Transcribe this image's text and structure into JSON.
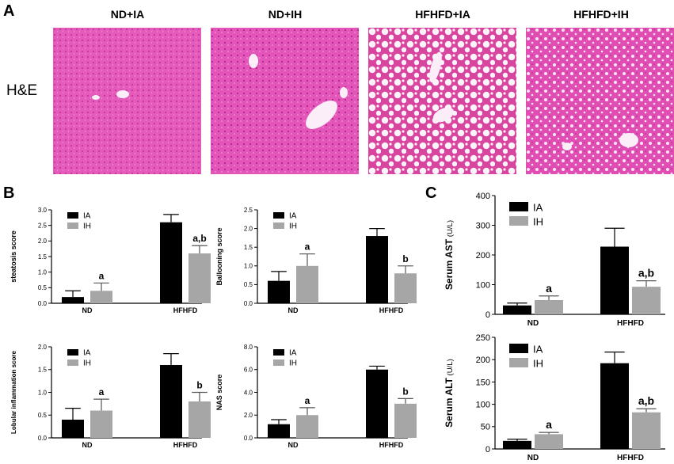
{
  "figure": {
    "panel_a_letter": "A",
    "panel_b_letter": "B",
    "panel_c_letter": "C",
    "stain_label": "H&E",
    "histology_titles": [
      "ND+IA",
      "ND+IH",
      "HFHFD+IA",
      "HFHFD+IH"
    ]
  },
  "colors": {
    "he_background": "#e24fb6",
    "IA_bar": "#000000",
    "IH_bar": "#a6a6a6"
  },
  "chart_data": [
    {
      "id": "steatosis",
      "type": "bar",
      "title": "",
      "xlabel": "",
      "ylabel": "steatosis score",
      "categories": [
        "ND",
        "HFHFD"
      ],
      "legend": [
        "IA",
        "IH"
      ],
      "legend_position": "top-left",
      "ylim": [
        0,
        3.0
      ],
      "yticks": [
        "0.0",
        "0.5",
        "1.0",
        "1.5",
        "2.0",
        "2.5",
        "3.0"
      ],
      "series": [
        {
          "name": "IA",
          "values": [
            0.2,
            2.6
          ],
          "errors": [
            0.2,
            0.25
          ]
        },
        {
          "name": "IH",
          "values": [
            0.4,
            1.6
          ],
          "errors": [
            0.25,
            0.25
          ]
        }
      ],
      "annotations": [
        "",
        "a",
        "",
        "a,b"
      ]
    },
    {
      "id": "ballooning",
      "type": "bar",
      "title": "",
      "xlabel": "",
      "ylabel": "Ballooning score",
      "categories": [
        "ND",
        "HFHFD"
      ],
      "legend": [
        "IA",
        "IH"
      ],
      "legend_position": "top-left",
      "ylim": [
        0,
        2.5
      ],
      "yticks": [
        "0.0",
        "0.5",
        "1.0",
        "1.5",
        "2.0",
        "2.5"
      ],
      "series": [
        {
          "name": "IA",
          "values": [
            0.6,
            1.8
          ],
          "errors": [
            0.25,
            0.2
          ]
        },
        {
          "name": "IH",
          "values": [
            1.0,
            0.8
          ],
          "errors": [
            0.32,
            0.2
          ]
        }
      ],
      "annotations": [
        "",
        "a",
        "",
        "b"
      ]
    },
    {
      "id": "lobular",
      "type": "bar",
      "title": "",
      "xlabel": "",
      "ylabel": "Lobular inflammation score",
      "categories": [
        "ND",
        "HFHFD"
      ],
      "legend": [
        "IA",
        "IH"
      ],
      "legend_position": "top-left",
      "ylim": [
        0,
        2.0
      ],
      "yticks": [
        "0.0",
        "0.5",
        "1.0",
        "1.5",
        "2.0"
      ],
      "series": [
        {
          "name": "IA",
          "values": [
            0.4,
            1.6
          ],
          "errors": [
            0.25,
            0.25
          ]
        },
        {
          "name": "IH",
          "values": [
            0.6,
            0.8
          ],
          "errors": [
            0.25,
            0.2
          ]
        }
      ],
      "annotations": [
        "",
        "a",
        "",
        "b"
      ]
    },
    {
      "id": "nas",
      "type": "bar",
      "title": "",
      "xlabel": "",
      "ylabel": "NAS score",
      "categories": [
        "ND",
        "HFHFD"
      ],
      "legend": [
        "IA",
        "IH"
      ],
      "legend_position": "top-left",
      "ylim": [
        0,
        8.0
      ],
      "yticks": [
        "0.0",
        "2.0",
        "4.0",
        "6.0",
        "8.0"
      ],
      "series": [
        {
          "name": "IA",
          "values": [
            1.2,
            6.0
          ],
          "errors": [
            0.4,
            0.3
          ]
        },
        {
          "name": "IH",
          "values": [
            2.0,
            3.0
          ],
          "errors": [
            0.65,
            0.45
          ]
        }
      ],
      "annotations": [
        "",
        "a",
        "",
        "b"
      ]
    },
    {
      "id": "ast",
      "type": "bar",
      "title": "",
      "xlabel": "",
      "ylabel": "Serum AST",
      "yunit": "(U/L)",
      "categories": [
        "ND",
        "HFHFD"
      ],
      "legend": [
        "IA",
        "IH"
      ],
      "legend_position": "top-left",
      "ylim": [
        0,
        400
      ],
      "yticks": [
        "0",
        "100",
        "200",
        "300",
        "400"
      ],
      "series": [
        {
          "name": "IA",
          "values": [
            30,
            228
          ],
          "errors": [
            8,
            62
          ]
        },
        {
          "name": "IH",
          "values": [
            48,
            93
          ],
          "errors": [
            14,
            20
          ]
        }
      ],
      "annotations": [
        "",
        "a",
        "",
        "a,b"
      ]
    },
    {
      "id": "alt",
      "type": "bar",
      "title": "",
      "xlabel": "",
      "ylabel": "Serum ALT",
      "yunit": "(U/L)",
      "categories": [
        "ND",
        "HFHFD"
      ],
      "legend": [
        "IA",
        "IH"
      ],
      "legend_position": "top-left",
      "ylim": [
        0,
        250
      ],
      "yticks": [
        "0",
        "50",
        "100",
        "150",
        "200",
        "250"
      ],
      "series": [
        {
          "name": "IA",
          "values": [
            18,
            192
          ],
          "errors": [
            4,
            25
          ]
        },
        {
          "name": "IH",
          "values": [
            33,
            82
          ],
          "errors": [
            4,
            8
          ]
        }
      ],
      "annotations": [
        "",
        "a",
        "",
        "a,b"
      ]
    }
  ]
}
